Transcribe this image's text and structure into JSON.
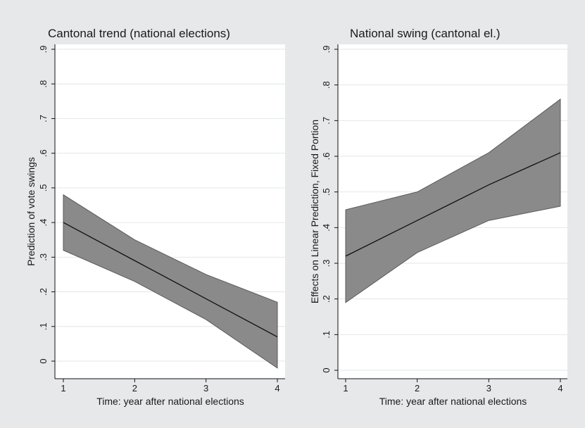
{
  "chart_data": [
    {
      "type": "line",
      "title": "Cantonal trend (national elections)",
      "xlabel": "Time: year after national elections",
      "ylabel": "Prediction of vote swings",
      "x": [
        1,
        2,
        3,
        4
      ],
      "x_ticks": [
        "1",
        "2",
        "3",
        "4"
      ],
      "y_ticks": [
        "0",
        ".1",
        ".2",
        ".3",
        ".4",
        ".5",
        ".6",
        ".7",
        ".8",
        ".9"
      ],
      "ylim": [
        0,
        0.9
      ],
      "grid": true,
      "series": [
        {
          "values": [
            0.4,
            0.29,
            0.18,
            0.07
          ]
        },
        {
          "role": "ci-upper",
          "values": [
            0.48,
            0.35,
            0.25,
            0.17
          ]
        },
        {
          "role": "ci-lower",
          "values": [
            0.32,
            0.23,
            0.12,
            -0.02
          ]
        }
      ]
    },
    {
      "type": "line",
      "title": "National swing (cantonal el.)",
      "xlabel": "Time: year after national elections",
      "ylabel": "Effects on Linear Prediction, Fixed Portion",
      "x": [
        1,
        2,
        3,
        4
      ],
      "x_ticks": [
        "1",
        "2",
        "3",
        "4"
      ],
      "y_ticks": [
        "0",
        ".1",
        ".2",
        ".3",
        ".4",
        ".5",
        ".6",
        ".7",
        ".8",
        ".9"
      ],
      "ylim": [
        0,
        0.9
      ],
      "grid": true,
      "series": [
        {
          "values": [
            0.32,
            0.42,
            0.52,
            0.61
          ]
        },
        {
          "role": "ci-upper",
          "values": [
            0.45,
            0.5,
            0.61,
            0.76
          ]
        },
        {
          "role": "ci-lower",
          "values": [
            0.19,
            0.33,
            0.42,
            0.46
          ]
        }
      ]
    }
  ],
  "colors": {
    "background": "#e6e8ea",
    "plot_area": "#ffffff",
    "ci_band": "#8a8a8a",
    "fit_line": "#111111"
  }
}
